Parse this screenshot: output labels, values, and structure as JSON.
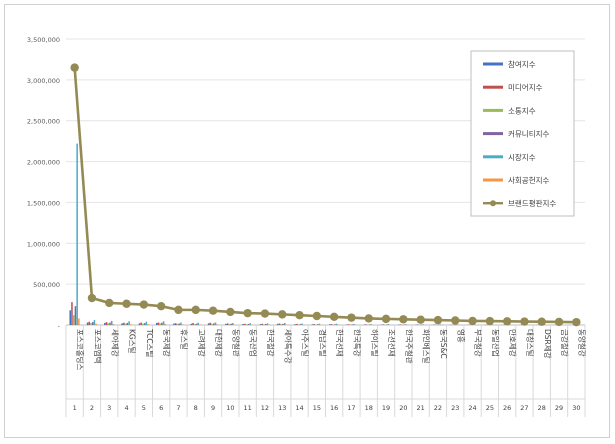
{
  "chart_data": {
    "type": "bar",
    "title": "",
    "xlabel": "",
    "ylabel": "",
    "ylim": [
      0,
      3500000
    ],
    "yticks": [
      0,
      500000,
      1000000,
      1500000,
      2000000,
      2500000,
      3000000,
      3500000
    ],
    "ytick_labels": [
      "-",
      "500,000",
      "1,000,000",
      "1,500,000",
      "2,000,000",
      "2,500,000",
      "3,000,000",
      "3,500,000"
    ],
    "grid": true,
    "legend_position": "top-right",
    "ranks": [
      "1",
      "2",
      "3",
      "4",
      "5",
      "6",
      "7",
      "8",
      "9",
      "10",
      "11",
      "12",
      "13",
      "14",
      "15",
      "16",
      "17",
      "18",
      "19",
      "20",
      "21",
      "22",
      "23",
      "24",
      "25",
      "26",
      "27",
      "28",
      "29",
      "30"
    ],
    "categories": [
      "포스코홀딩스",
      "포스코엠텍",
      "세아제강",
      "KG스틸",
      "TCC스틸",
      "동국제강",
      "휴스틸",
      "고려제강",
      "대한제강",
      "동양철관",
      "동국산업",
      "한국철강",
      "세아특수강",
      "아주스틸",
      "경남스틸",
      "한국선재",
      "한국특강",
      "하이스틸",
      "조선선재",
      "한국주철관",
      "화인베스틸",
      "동국S&C",
      "영흥",
      "부국철강",
      "동일산업",
      "만호제강",
      "대창스틸",
      "DSR제강",
      "금강철강",
      "동양철강"
    ],
    "series": [
      {
        "name": "참여지수",
        "color": "#4472c4",
        "type": "bar",
        "values": [
          180000,
          30000,
          25000,
          20000,
          20000,
          25000,
          18000,
          15000,
          20000,
          15000,
          12000,
          10000,
          15000,
          10000,
          8000,
          8000,
          6000,
          6000,
          5000,
          5000,
          4000,
          4000,
          3000,
          3000,
          3000,
          2000,
          2000,
          2000,
          2000,
          2000
        ]
      },
      {
        "name": "미디어지수",
        "color": "#c0504d",
        "type": "bar",
        "values": [
          280000,
          40000,
          35000,
          28000,
          30000,
          30000,
          22000,
          25000,
          28000,
          20000,
          15000,
          15000,
          18000,
          14000,
          12000,
          11000,
          9000,
          8000,
          7000,
          7000,
          6000,
          5000,
          4000,
          4000,
          4000,
          3000,
          3000,
          3000,
          3000,
          3000
        ]
      },
      {
        "name": "소통지수",
        "color": "#9bbb59",
        "type": "bar",
        "values": [
          120000,
          25000,
          20000,
          15000,
          15000,
          20000,
          12000,
          10000,
          12000,
          10000,
          8000,
          8000,
          10000,
          7000,
          6000,
          6000,
          5000,
          4000,
          4000,
          4000,
          3000,
          3000,
          3000,
          2000,
          2000,
          2000,
          2000,
          2000,
          2000,
          2000
        ]
      },
      {
        "name": "커뮤니티지수",
        "color": "#8064a2",
        "type": "bar",
        "values": [
          230000,
          35000,
          30000,
          25000,
          22000,
          28000,
          18000,
          16000,
          20000,
          15000,
          12000,
          12000,
          14000,
          10000,
          9000,
          9000,
          7000,
          6000,
          6000,
          5000,
          5000,
          4000,
          3000,
          3000,
          3000,
          3000,
          2000,
          2000,
          2000,
          2000
        ]
      },
      {
        "name": "시장지수",
        "color": "#4bacc6",
        "type": "bar",
        "values": [
          2220000,
          60000,
          50000,
          45000,
          40000,
          45000,
          30000,
          28000,
          30000,
          25000,
          22000,
          20000,
          25000,
          18000,
          16000,
          15000,
          12000,
          10000,
          10000,
          9000,
          8000,
          7000,
          6000,
          6000,
          5000,
          5000,
          4000,
          4000,
          4000,
          3000
        ]
      },
      {
        "name": "사회공헌지수",
        "color": "#f79646",
        "type": "bar",
        "values": [
          80000,
          15000,
          12000,
          10000,
          10000,
          12000,
          8000,
          7000,
          8000,
          6000,
          5000,
          5000,
          6000,
          4000,
          4000,
          3000,
          3000,
          3000,
          2000,
          2000,
          2000,
          2000,
          2000,
          1000,
          1000,
          1000,
          1000,
          1000,
          1000,
          1000
        ]
      },
      {
        "name": "브랜드평판지수",
        "color": "#948a54",
        "type": "line",
        "values": [
          3150000,
          330000,
          270000,
          260000,
          250000,
          230000,
          185000,
          185000,
          175000,
          160000,
          145000,
          140000,
          130000,
          120000,
          110000,
          100000,
          90000,
          80000,
          75000,
          70000,
          65000,
          60000,
          55000,
          50000,
          48000,
          45000,
          42000,
          40000,
          38000,
          35000
        ]
      }
    ]
  }
}
